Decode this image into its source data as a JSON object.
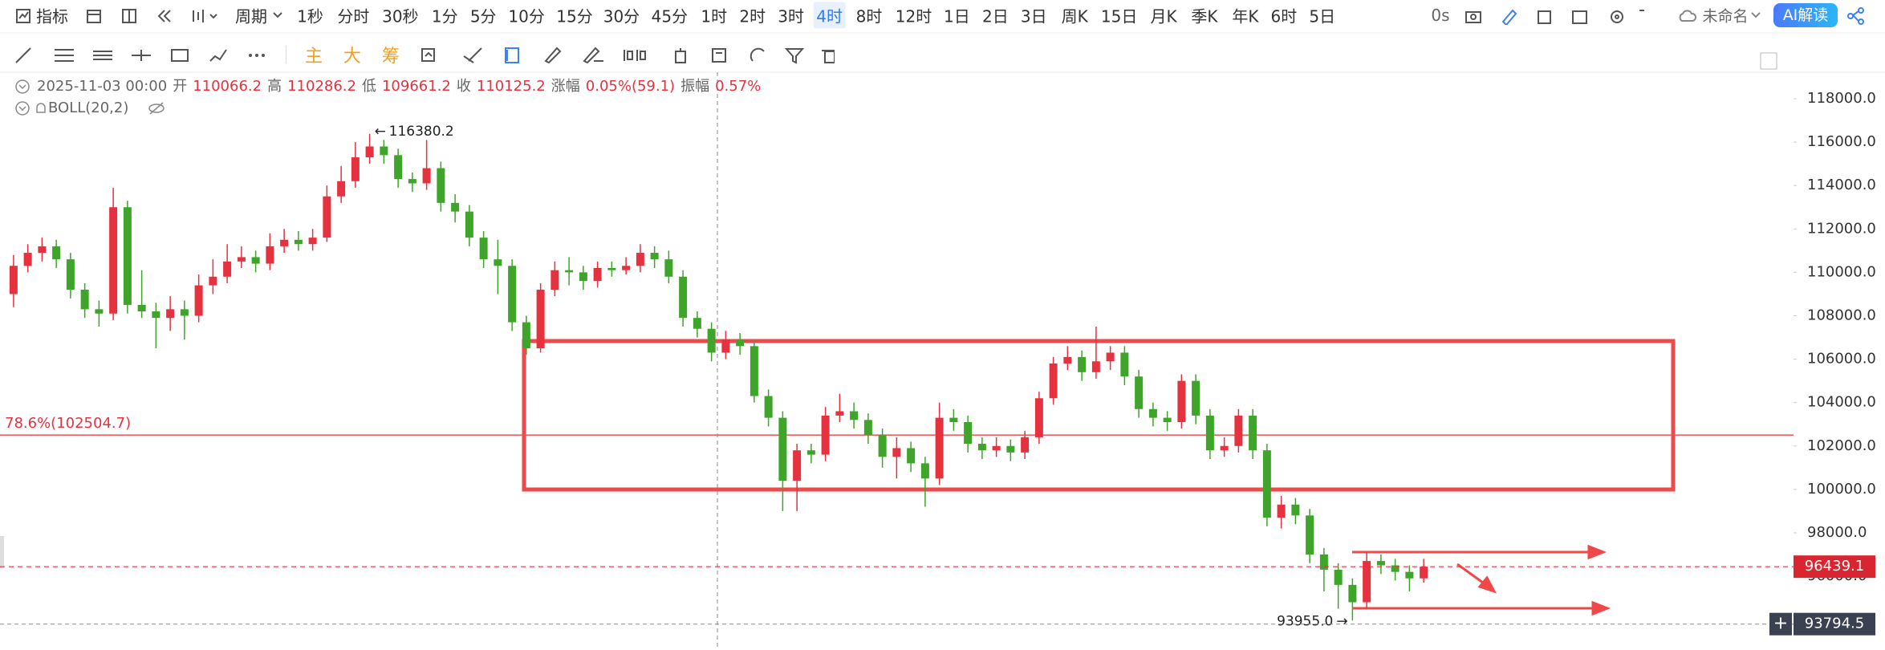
{
  "toolbar": {
    "indicator": "指标",
    "period": "周期",
    "intervals": [
      "1秒",
      "分时",
      "30秒",
      "1分",
      "5分",
      "10分",
      "15分",
      "30分",
      "45分",
      "1时",
      "2时",
      "3时",
      "4时",
      "8时",
      "12时",
      "1日",
      "2日",
      "3日",
      "周K",
      "15日",
      "月K",
      "季K",
      "年K",
      "6时",
      "5日"
    ],
    "active_interval": 12,
    "timer": "0s",
    "layout_name": "未命名",
    "ai_button": "AI解读"
  },
  "drawing_toolbar": {
    "tags": [
      "主",
      "大",
      "筹"
    ]
  },
  "info": {
    "datetime": "2025-11-03 00:00",
    "open_label": "开",
    "open": 110066.2,
    "high_label": "高",
    "high": 110286.2,
    "low_label": "低",
    "low": 109661.2,
    "close_label": "收",
    "close": 110125.2,
    "change_label": "涨幅",
    "change": "0.05%(59.1)",
    "amplitude_label": "振幅",
    "amplitude": "0.57%",
    "indicator": "BOLL(20,2)"
  },
  "chart_data": {
    "type": "candlestick",
    "up_color": "#e5323e",
    "down_color": "#3ea52a",
    "ylim": [
      92600,
      119220
    ],
    "yticks": [
      {
        "value": 94000,
        "label": "94000.0"
      },
      {
        "value": 96000,
        "label": "96000.0"
      },
      {
        "value": 98000,
        "label": "98000.0"
      },
      {
        "value": 100000,
        "label": "100000.0"
      },
      {
        "value": 102000,
        "label": "102000.0"
      },
      {
        "value": 104000,
        "label": "104000.0"
      },
      {
        "value": 106000,
        "label": "106000.0"
      },
      {
        "value": 108000,
        "label": "108000.0"
      },
      {
        "value": 110000,
        "label": "110000.0"
      },
      {
        "value": 112000,
        "label": "112000.0"
      },
      {
        "value": 114000,
        "label": "114000.0"
      },
      {
        "value": 116000,
        "label": "116000.0"
      },
      {
        "value": 118000,
        "label": "118000.0"
      }
    ],
    "ohlc": [
      [
        109000,
        110800,
        108400,
        110300
      ],
      [
        110300,
        111300,
        110000,
        110900
      ],
      [
        110900,
        111600,
        110500,
        111200
      ],
      [
        111200,
        111500,
        110200,
        110600
      ],
      [
        110600,
        110900,
        108800,
        109200
      ],
      [
        109200,
        109500,
        107900,
        108300
      ],
      [
        108300,
        108700,
        107500,
        108100
      ],
      [
        108100,
        113900,
        107800,
        113000
      ],
      [
        113000,
        113300,
        108100,
        108500
      ],
      [
        108500,
        110100,
        107900,
        108200
      ],
      [
        108200,
        108600,
        106500,
        107900
      ],
      [
        107900,
        108900,
        107300,
        108300
      ],
      [
        108300,
        108700,
        106900,
        108000
      ],
      [
        108000,
        109900,
        107700,
        109400
      ],
      [
        109400,
        110600,
        109000,
        109800
      ],
      [
        109800,
        111300,
        109500,
        110500
      ],
      [
        110500,
        111200,
        110200,
        110700
      ],
      [
        110700,
        111000,
        110000,
        110400
      ],
      [
        110400,
        111800,
        110100,
        111200
      ],
      [
        111200,
        112000,
        110900,
        111500
      ],
      [
        111500,
        111900,
        111000,
        111300
      ],
      [
        111300,
        112000,
        111000,
        111600
      ],
      [
        111600,
        114000,
        111400,
        113500
      ],
      [
        113500,
        114900,
        113200,
        114200
      ],
      [
        114200,
        116000,
        113900,
        115300
      ],
      [
        115300,
        116380.2,
        115000,
        115800
      ],
      [
        115800,
        116100,
        115000,
        115400
      ],
      [
        115400,
        115700,
        113900,
        114300
      ],
      [
        114300,
        114600,
        113700,
        114100
      ],
      [
        114100,
        116100,
        113800,
        114800
      ],
      [
        114800,
        115100,
        112800,
        113200
      ],
      [
        113200,
        113600,
        112300,
        112800
      ],
      [
        112800,
        113100,
        111200,
        111600
      ],
      [
        111600,
        111900,
        110200,
        110600
      ],
      [
        110600,
        111500,
        109000,
        110300
      ],
      [
        110300,
        110600,
        107300,
        107700
      ],
      [
        107700,
        108000,
        106200,
        106500
      ],
      [
        106500,
        109500,
        106300,
        109200
      ],
      [
        109200,
        110500,
        108900,
        110100
      ],
      [
        110100,
        110700,
        109400,
        110000
      ],
      [
        110000,
        110300,
        109200,
        109600
      ],
      [
        109600,
        110500,
        109300,
        110200
      ],
      [
        110200,
        110500,
        109800,
        110100
      ],
      [
        110100,
        110700,
        109900,
        110300
      ],
      [
        110300,
        111300,
        110000,
        110900
      ],
      [
        110900,
        111200,
        110200,
        110600
      ],
      [
        110600,
        111000,
        109500,
        109800
      ],
      [
        109800,
        110100,
        107500,
        107900
      ],
      [
        107900,
        108200,
        107000,
        107400
      ],
      [
        107400,
        107700,
        105900,
        106300
      ],
      [
        106300,
        107300,
        106000,
        106900
      ],
      [
        106900,
        107200,
        106200,
        106600
      ],
      [
        106600,
        106900,
        104000,
        104300
      ],
      [
        104300,
        104600,
        102900,
        103300
      ],
      [
        103300,
        103600,
        99000,
        100400
      ],
      [
        100400,
        102100,
        99000,
        101800
      ],
      [
        101800,
        102100,
        101200,
        101600
      ],
      [
        101600,
        103800,
        101300,
        103400
      ],
      [
        103400,
        104400,
        103100,
        103600
      ],
      [
        103600,
        104000,
        102800,
        103200
      ],
      [
        103200,
        103500,
        102100,
        102500
      ],
      [
        102500,
        102800,
        101000,
        101500
      ],
      [
        101500,
        102400,
        100500,
        101900
      ],
      [
        101900,
        102200,
        100800,
        101200
      ],
      [
        101200,
        101500,
        99200,
        100500
      ],
      [
        100500,
        104000,
        100200,
        103300
      ],
      [
        103300,
        103700,
        102700,
        103100
      ],
      [
        103100,
        103400,
        101700,
        102100
      ],
      [
        102100,
        102400,
        101400,
        101800
      ],
      [
        101800,
        102400,
        101500,
        102000
      ],
      [
        102000,
        102300,
        101300,
        101700
      ],
      [
        101700,
        102700,
        101400,
        102400
      ],
      [
        102400,
        104500,
        102100,
        104200
      ],
      [
        104200,
        106100,
        103900,
        105800
      ],
      [
        105800,
        106600,
        105500,
        106100
      ],
      [
        106100,
        106400,
        105000,
        105400
      ],
      [
        105400,
        107500,
        105100,
        105900
      ],
      [
        105900,
        106600,
        105500,
        106300
      ],
      [
        106300,
        106600,
        104800,
        105200
      ],
      [
        105200,
        105500,
        103300,
        103700
      ],
      [
        103700,
        104000,
        102900,
        103300
      ],
      [
        103300,
        103600,
        102700,
        103100
      ],
      [
        103100,
        105300,
        102800,
        105000
      ],
      [
        105000,
        105300,
        103000,
        103400
      ],
      [
        103400,
        103700,
        101400,
        101800
      ],
      [
        101800,
        102400,
        101500,
        102000
      ],
      [
        102000,
        103700,
        101700,
        103400
      ],
      [
        103400,
        103700,
        101400,
        101800
      ],
      [
        101800,
        102100,
        98300,
        98700
      ],
      [
        98700,
        99700,
        98200,
        99300
      ],
      [
        99300,
        99600,
        98400,
        98800
      ],
      [
        98800,
        99100,
        96600,
        97000
      ],
      [
        97000,
        97300,
        95300,
        96300
      ],
      [
        96300,
        96600,
        94500,
        95600
      ],
      [
        95600,
        95900,
        93955,
        94800
      ],
      [
        94800,
        97100,
        94500,
        96700
      ],
      [
        96700,
        97000,
        96100,
        96500
      ],
      [
        96500,
        96800,
        95800,
        96200
      ],
      [
        96200,
        96500,
        95300,
        95900
      ],
      [
        95900,
        96800,
        95700,
        96439.1
      ]
    ],
    "low_label": "93955.0",
    "fib_line": {
      "label": "78.6%(102504.7)",
      "value": 102504.7
    },
    "crosshair_price": 93794.5
  }
}
